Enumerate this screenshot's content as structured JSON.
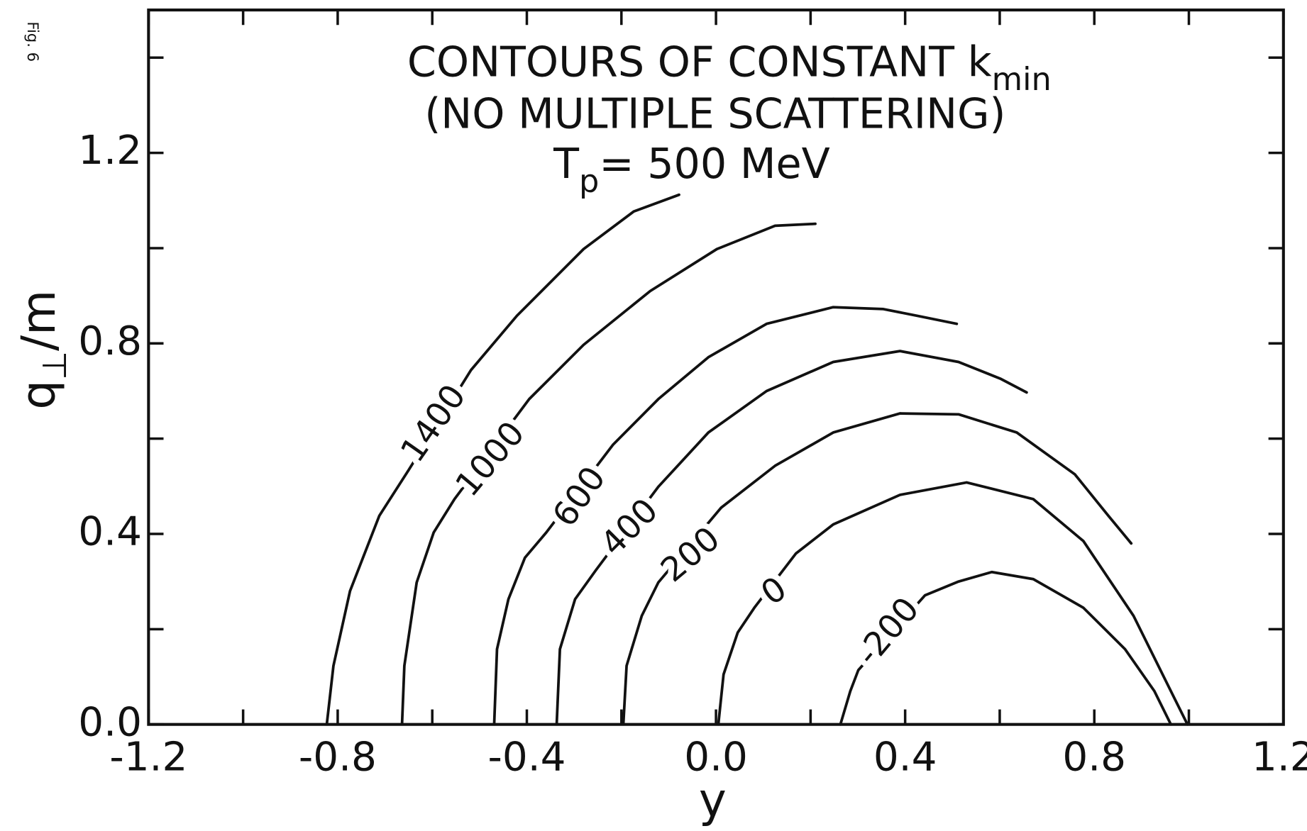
{
  "chart_data": {
    "type": "contour",
    "figure_label": "Fig. 6",
    "title": {
      "text": "CONTOURS OF CONSTANT k",
      "sub": "min"
    },
    "subtitle": "(NO MULTIPLE SCATTERING)",
    "annotation": {
      "text": "T",
      "sub": "p",
      "rest": "= 500 MeV"
    },
    "xlabel": "y",
    "ylabel": {
      "text": "q",
      "sub": "⊥",
      "rest": "/m"
    },
    "xlim": [
      -1.2,
      1.2
    ],
    "ylim": [
      0,
      1.5
    ],
    "xticks": [
      -1.2,
      -0.8,
      -0.4,
      {
        "value": 0,
        "label": "0.0"
      },
      0.4,
      0.8,
      1.2
    ],
    "yticks": [
      {
        "value": 0,
        "label": "0.0"
      },
      0.4,
      0.8,
      1.2
    ],
    "xminor": [
      -1.0,
      -0.6,
      -0.2,
      0.2,
      0.6,
      1.0
    ],
    "yminor": [
      0.2,
      0.6,
      1.0,
      1.4
    ],
    "color": "#111111",
    "series": [
      {
        "name": "1400",
        "x": [
          -0.823,
          -0.809,
          -0.774,
          -0.712,
          -0.65,
          -0.518,
          -0.421,
          -0.28,
          -0.174,
          -0.078
        ],
        "y": [
          0,
          0.123,
          0.28,
          0.438,
          0.534,
          0.744,
          0.858,
          0.998,
          1.077,
          1.112
        ]
      },
      {
        "name": "1000",
        "x": [
          -0.664,
          -0.659,
          -0.633,
          -0.597,
          -0.553,
          -0.395,
          -0.28,
          -0.139,
          0.002,
          0.125,
          0.21
        ],
        "y": [
          0,
          0.123,
          0.298,
          0.403,
          0.473,
          0.683,
          0.797,
          0.91,
          0.998,
          1.047,
          1.051
        ]
      },
      {
        "name": "600",
        "x": [
          -0.469,
          -0.463,
          -0.439,
          -0.404,
          -0.359,
          -0.218,
          -0.122,
          -0.016,
          0.107,
          0.248,
          0.354,
          0.425,
          0.509
        ],
        "y": [
          0,
          0.158,
          0.263,
          0.35,
          0.403,
          0.587,
          0.683,
          0.771,
          0.841,
          0.876,
          0.872,
          0.858,
          0.841
        ]
      },
      {
        "name": "400",
        "x": [
          -0.337,
          -0.33,
          -0.298,
          -0.254,
          -0.122,
          -0.016,
          0.107,
          0.248,
          0.389,
          0.513,
          0.601,
          0.657
        ],
        "y": [
          0,
          0.158,
          0.263,
          0.324,
          0.499,
          0.613,
          0.7,
          0.761,
          0.784,
          0.761,
          0.726,
          0.697
        ]
      },
      {
        "name": "200",
        "x": [
          -0.196,
          -0.189,
          -0.157,
          -0.122,
          0.011,
          0.125,
          0.248,
          0.389,
          0.513,
          0.636,
          0.759,
          0.83,
          0.878
        ],
        "y": [
          0,
          0.123,
          0.228,
          0.298,
          0.455,
          0.543,
          0.613,
          0.653,
          0.651,
          0.613,
          0.525,
          0.438,
          0.38
        ]
      },
      {
        "name": "0",
        "x": [
          0.005,
          0.016,
          0.046,
          0.081,
          0.169,
          0.248,
          0.389,
          0.53,
          0.671,
          0.777,
          0.883,
          0.962,
          0.997
        ],
        "y": [
          0,
          0.105,
          0.193,
          0.245,
          0.359,
          0.42,
          0.482,
          0.508,
          0.473,
          0.385,
          0.228,
          0.07,
          0
        ]
      },
      {
        "name": "-200",
        "x": [
          0.263,
          0.284,
          0.301,
          0.442,
          0.513,
          0.583,
          0.671,
          0.777,
          0.865,
          0.927,
          0.962
        ],
        "y": [
          0,
          0.07,
          0.114,
          0.271,
          0.3,
          0.32,
          0.305,
          0.245,
          0.158,
          0.07,
          0
        ]
      }
    ]
  }
}
